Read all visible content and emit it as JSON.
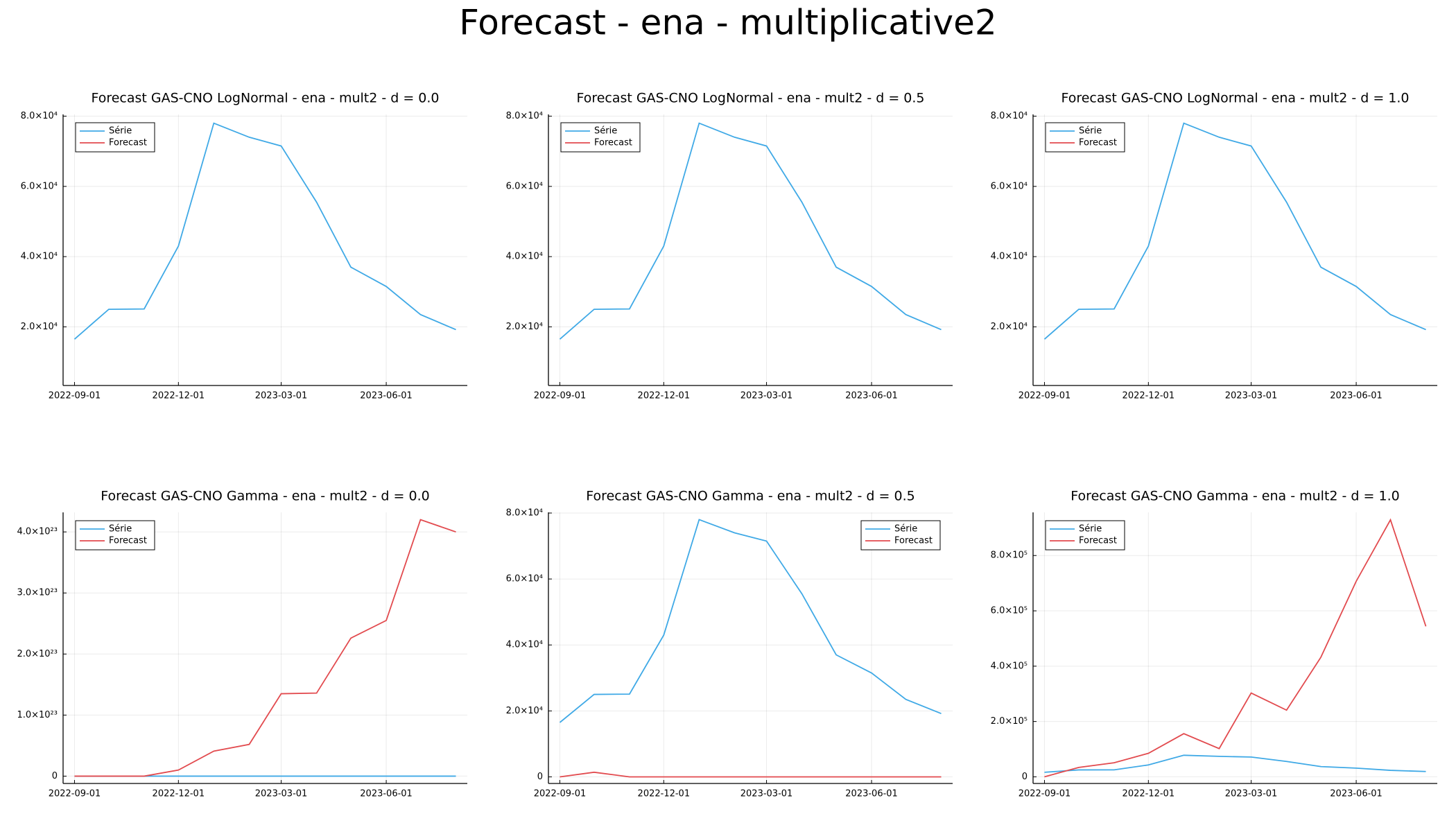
{
  "title": "Forecast - ena - multiplicative2",
  "chart_data": [
    {
      "type": "line",
      "title": "Forecast GAS-CNO LogNormal - ena - mult2 - d = 0.0",
      "x": [
        "2022-09-01",
        "2022-10-01",
        "2022-11-01",
        "2022-12-01",
        "2023-01-01",
        "2023-02-01",
        "2023-03-01",
        "2023-04-01",
        "2023-05-01",
        "2023-06-01",
        "2023-07-01",
        "2023-08-01"
      ],
      "series": [
        {
          "name": "Série",
          "color": "#3fa9e6",
          "values": [
            16500,
            25000,
            25100,
            43000,
            78000,
            74000,
            71500,
            55500,
            37000,
            31500,
            23500,
            19200
          ]
        },
        {
          "name": "Forecast",
          "color": "#e24a4e",
          "values": [
            null,
            null,
            null,
            null,
            null,
            null,
            null,
            null,
            null,
            null,
            null,
            null
          ]
        }
      ],
      "xlim": [
        "2022-08-22",
        "2023-08-11"
      ],
      "xticks": [
        "2022-09-01",
        "2022-12-01",
        "2023-03-01",
        "2023-06-01"
      ],
      "ylim": [
        3300,
        80500
      ],
      "yticks": [
        {
          "value": 20000,
          "label": "2.0×10⁴"
        },
        {
          "value": 40000,
          "label": "4.0×10⁴"
        },
        {
          "value": 60000,
          "label": "6.0×10⁴"
        },
        {
          "value": 80000,
          "label": "8.0×10⁴"
        }
      ],
      "grid": true,
      "legend": "top-left"
    },
    {
      "type": "line",
      "title": "Forecast GAS-CNO LogNormal - ena - mult2 - d = 0.5",
      "x": [
        "2022-09-01",
        "2022-10-01",
        "2022-11-01",
        "2022-12-01",
        "2023-01-01",
        "2023-02-01",
        "2023-03-01",
        "2023-04-01",
        "2023-05-01",
        "2023-06-01",
        "2023-07-01",
        "2023-08-01"
      ],
      "series": [
        {
          "name": "Série",
          "color": "#3fa9e6",
          "values": [
            16500,
            25000,
            25100,
            43000,
            78000,
            74000,
            71500,
            55500,
            37000,
            31500,
            23500,
            19200
          ]
        },
        {
          "name": "Forecast",
          "color": "#e24a4e",
          "values": [
            null,
            null,
            null,
            null,
            null,
            null,
            null,
            null,
            null,
            null,
            null,
            null
          ]
        }
      ],
      "xlim": [
        "2022-08-22",
        "2023-08-11"
      ],
      "xticks": [
        "2022-09-01",
        "2022-12-01",
        "2023-03-01",
        "2023-06-01"
      ],
      "ylim": [
        3300,
        80500
      ],
      "yticks": [
        {
          "value": 20000,
          "label": "2.0×10⁴"
        },
        {
          "value": 40000,
          "label": "4.0×10⁴"
        },
        {
          "value": 60000,
          "label": "6.0×10⁴"
        },
        {
          "value": 80000,
          "label": "8.0×10⁴"
        }
      ],
      "grid": true,
      "legend": "top-left"
    },
    {
      "type": "line",
      "title": "Forecast GAS-CNO LogNormal - ena - mult2 - d = 1.0",
      "x": [
        "2022-09-01",
        "2022-10-01",
        "2022-11-01",
        "2022-12-01",
        "2023-01-01",
        "2023-02-01",
        "2023-03-01",
        "2023-04-01",
        "2023-05-01",
        "2023-06-01",
        "2023-07-01",
        "2023-08-01"
      ],
      "series": [
        {
          "name": "Série",
          "color": "#3fa9e6",
          "values": [
            16500,
            25000,
            25100,
            43000,
            78000,
            74000,
            71500,
            55500,
            37000,
            31500,
            23500,
            19200
          ]
        },
        {
          "name": "Forecast",
          "color": "#e24a4e",
          "values": [
            null,
            null,
            null,
            null,
            null,
            null,
            null,
            null,
            null,
            null,
            null,
            null
          ]
        }
      ],
      "xlim": [
        "2022-08-22",
        "2023-08-11"
      ],
      "xticks": [
        "2022-09-01",
        "2022-12-01",
        "2023-03-01",
        "2023-06-01"
      ],
      "ylim": [
        3300,
        80500
      ],
      "yticks": [
        {
          "value": 20000,
          "label": "2.0×10⁴"
        },
        {
          "value": 40000,
          "label": "4.0×10⁴"
        },
        {
          "value": 60000,
          "label": "6.0×10⁴"
        },
        {
          "value": 80000,
          "label": "8.0×10⁴"
        }
      ],
      "grid": true,
      "legend": "top-left"
    },
    {
      "type": "line",
      "title": "Forecast GAS-CNO Gamma - ena - mult2 - d = 0.0",
      "x": [
        "2022-09-01",
        "2022-10-01",
        "2022-11-01",
        "2022-12-01",
        "2023-01-01",
        "2023-02-01",
        "2023-03-01",
        "2023-04-01",
        "2023-05-01",
        "2023-06-01",
        "2023-07-01",
        "2023-08-01"
      ],
      "series": [
        {
          "name": "Série",
          "color": "#3fa9e6",
          "values": [
            16500,
            25000,
            25100,
            43000,
            78000,
            74000,
            71500,
            55500,
            37000,
            31500,
            23500,
            19200
          ]
        },
        {
          "name": "Forecast",
          "color": "#e24a4e",
          "values": [
            0,
            0,
            0,
            1e+22,
            4.1e+22,
            5.2e+22,
            1.35e+23,
            1.36e+23,
            2.26e+23,
            2.55e+23,
            4.2e+23,
            4e+23
          ]
        }
      ],
      "xlim": [
        "2022-08-22",
        "2023-08-11"
      ],
      "xticks": [
        "2022-09-01",
        "2022-12-01",
        "2023-03-01",
        "2023-06-01"
      ],
      "ylim": [
        -1.2e+22,
        4.32e+23
      ],
      "yticks": [
        0,
        {
          "value": 1e+23,
          "label": "1.0×10²³"
        },
        {
          "value": 2e+23,
          "label": "2.0×10²³"
        },
        {
          "value": 3e+23,
          "label": "3.0×10²³"
        },
        {
          "value": 4e+23,
          "label": "4.0×10²³"
        }
      ],
      "grid": true,
      "legend": "top-left"
    },
    {
      "type": "line",
      "title": "Forecast GAS-CNO Gamma - ena - mult2 - d = 0.5",
      "x": [
        "2022-09-01",
        "2022-10-01",
        "2022-11-01",
        "2022-12-01",
        "2023-01-01",
        "2023-02-01",
        "2023-03-01",
        "2023-04-01",
        "2023-05-01",
        "2023-06-01",
        "2023-07-01",
        "2023-08-01"
      ],
      "series": [
        {
          "name": "Série",
          "color": "#3fa9e6",
          "values": [
            16500,
            25000,
            25100,
            43000,
            78000,
            74000,
            71500,
            55500,
            37000,
            31500,
            23500,
            19200
          ]
        },
        {
          "name": "Forecast",
          "color": "#e24a4e",
          "values": [
            0,
            1400,
            0,
            0,
            0,
            0,
            0,
            0,
            0,
            0,
            0,
            0
          ]
        }
      ],
      "xlim": [
        "2022-08-22",
        "2023-08-11"
      ],
      "xticks": [
        "2022-09-01",
        "2022-12-01",
        "2023-03-01",
        "2023-06-01"
      ],
      "ylim": [
        -2000,
        80200
      ],
      "yticks": [
        0,
        {
          "value": 20000,
          "label": "2.0×10⁴"
        },
        {
          "value": 40000,
          "label": "4.0×10⁴"
        },
        {
          "value": 60000,
          "label": "6.0×10⁴"
        },
        {
          "value": 80000,
          "label": "8.0×10⁴"
        }
      ],
      "grid": true,
      "legend": "top-right"
    },
    {
      "type": "line",
      "title": "Forecast GAS-CNO Gamma - ena - mult2 - d = 1.0",
      "x": [
        "2022-09-01",
        "2022-10-01",
        "2022-11-01",
        "2022-12-01",
        "2023-01-01",
        "2023-02-01",
        "2023-03-01",
        "2023-04-01",
        "2023-05-01",
        "2023-06-01",
        "2023-07-01",
        "2023-08-01"
      ],
      "series": [
        {
          "name": "Série",
          "color": "#3fa9e6",
          "values": [
            16500,
            25000,
            25100,
            43000,
            78000,
            74000,
            71500,
            55500,
            37000,
            31500,
            23500,
            19200
          ]
        },
        {
          "name": "Forecast",
          "color": "#e24a4e",
          "values": [
            0,
            34000,
            51000,
            85000,
            156000,
            102000,
            303000,
            241000,
            432000,
            707000,
            929000,
            544000
          ]
        }
      ],
      "xlim": [
        "2022-08-22",
        "2023-08-11"
      ],
      "xticks": [
        "2022-09-01",
        "2022-12-01",
        "2023-03-01",
        "2023-06-01"
      ],
      "ylim": [
        -24000,
        956000
      ],
      "yticks": [
        0,
        {
          "value": 200000,
          "label": "2.0×10⁵"
        },
        {
          "value": 400000,
          "label": "4.0×10⁵"
        },
        {
          "value": 600000,
          "label": "6.0×10⁵"
        },
        {
          "value": 800000,
          "label": "8.0×10⁵"
        }
      ],
      "grid": true,
      "legend": "top-left"
    }
  ]
}
